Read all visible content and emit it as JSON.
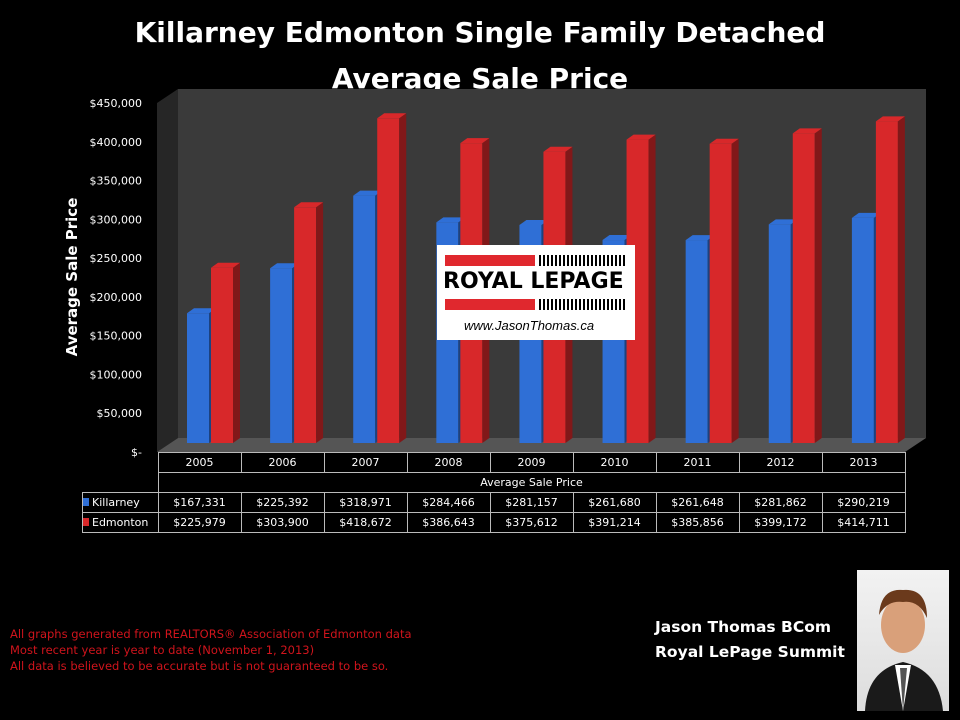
{
  "title_line1": "Killarney Edmonton Single Family Detached",
  "title_line2": "Average Sale Price",
  "chart_data": {
    "type": "bar",
    "title": "Killarney Edmonton Single Family Detached Average Sale Price",
    "ylabel": "Average Sale Price",
    "xlabel": "Average Sale Price",
    "ylim": [
      0,
      450000
    ],
    "yticks": [
      "$-",
      "$50,000",
      "$100,000",
      "$150,000",
      "$200,000",
      "$250,000",
      "$300,000",
      "$350,000",
      "$400,000",
      "$450,000"
    ],
    "categories": [
      "2005",
      "2006",
      "2007",
      "2008",
      "2009",
      "2010",
      "2011",
      "2012",
      "2013"
    ],
    "series": [
      {
        "name": "Killarney",
        "color": "#2f6fd6",
        "values": [
          167331,
          225392,
          318971,
          284466,
          281157,
          261680,
          261648,
          281862,
          290219
        ],
        "labels": [
          "$167,331",
          "$225,392",
          "$318,971",
          "$284,466",
          "$281,157",
          "$261,680",
          "$261,648",
          "$281,862",
          "$290,219"
        ]
      },
      {
        "name": "Edmonton",
        "color": "#d8282a",
        "values": [
          225979,
          303900,
          418672,
          386643,
          375612,
          391214,
          385856,
          399172,
          414711
        ],
        "labels": [
          "$225,979",
          "$303,900",
          "$418,672",
          "$386,643",
          "$375,612",
          "$391,214",
          "$385,856",
          "$399,172",
          "$414,711"
        ]
      }
    ],
    "grid": false,
    "legend": "table"
  },
  "logo": {
    "brand": "ROYAL LEPAGE",
    "url": "www.JasonThomas.ca"
  },
  "notes": [
    "All graphs generated from REALTORS® Association of Edmonton data",
    "Most recent year is year to date (November 1, 2013)",
    "All data is believed to be accurate but is not guaranteed to be so."
  ],
  "signature": {
    "name": "Jason Thomas BCom",
    "company": "Royal LePage Summit"
  }
}
